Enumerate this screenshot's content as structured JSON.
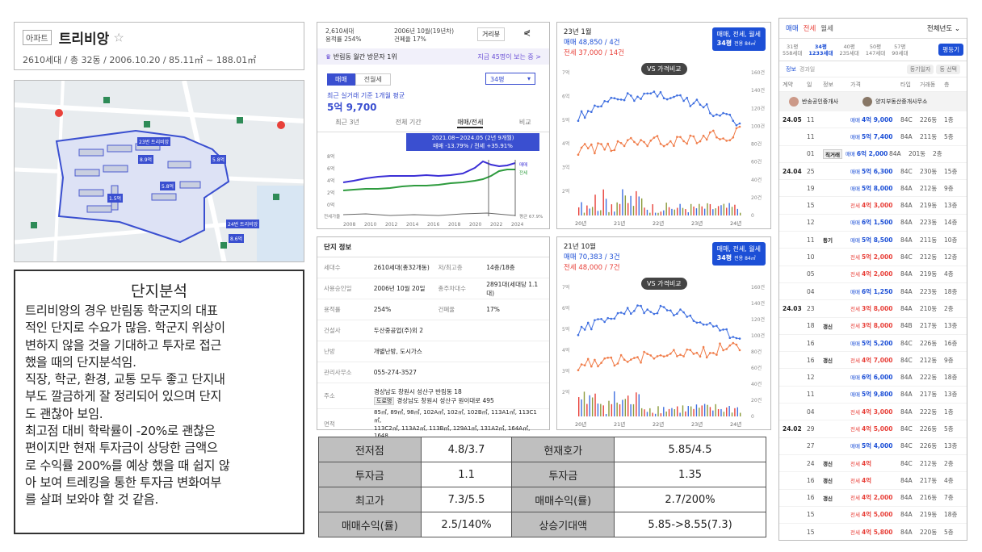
{
  "header": {
    "type_tag": "아파트",
    "name": "트리비앙",
    "subtitle": "2610세대 / 총 32동 / 2006.10.20 / 85.11㎡ ~ 188.01㎡"
  },
  "map": {
    "labels": [
      "23번 트리비앙",
      "8.9억",
      "5.8억",
      "5.8억",
      "24번 트리비앙",
      "8.6억",
      "1.5억"
    ]
  },
  "analysis": {
    "title": "단지분석",
    "lines": [
      "트리비앙의 경우 반림동 학군지의 대표",
      "적인 단지로 수요가 많음. 학군지 위상이",
      "변하지 않을 것을 기대하고 투자로 접근",
      "했을 때의 단지분석임.",
      "직장, 학군, 환경, 교통 모두 좋고 단지내",
      "부도 깔금하게 잘 정리되어 있으며 단지",
      "도 괜찮아 보임.",
      "최고점 대비 학락률이 -20%로 괜찮은",
      "편이지만 현재 투자금이 상당한 금액으",
      "로 수익률 200%를 예상 했을 때 쉽지 않",
      "아 보여 트레킹을 통한 투자금 변화여부",
      "를 살펴 보와야 할 것 같음."
    ]
  },
  "price": {
    "households": "2,610세대",
    "floor_ratio": "용적률 254%",
    "built": "2006년 10월(19년차)",
    "building_ratio": "건폐율 17%",
    "distance_btn": "거리뷰",
    "banner_left": "반림동 월간 방문자 1위",
    "banner_right": "지금 45명이 보는 중 >",
    "tabs": [
      "매매",
      "전월세"
    ],
    "size_select": "34평",
    "recent_label": "최근 실거래 기준 1개월 평균",
    "recent_price": "5억 9,700",
    "periods": [
      "최근 3년",
      "전체 기간",
      "매매/전세",
      "비교"
    ],
    "tooltip_period": "2021.08~2024.05 (2년 9개월)",
    "tooltip_change": "매매 -13.79% / 전세 +35.91%",
    "y_ticks": [
      "8억",
      "6억",
      "4억",
      "2억",
      "0억"
    ],
    "x_ticks": [
      "2008",
      "2010",
      "2012",
      "2014",
      "2016",
      "2018",
      "2020",
      "2022",
      "2024"
    ],
    "ratio_label": "전세가율",
    "ratio_value": "평균 67.9%",
    "legend": [
      "매매",
      "전세"
    ]
  },
  "info": {
    "title": "단지 정보",
    "rows": [
      [
        "세대수",
        "2610세대(총32개동)",
        "저/최고층",
        "14층/18층"
      ],
      [
        "사용승인일",
        "2006년 10월 20일",
        "총주차대수",
        "2891대(세대당 1.1대)"
      ],
      [
        "용적률",
        "254%",
        "건폐율",
        "17%"
      ],
      [
        "건설사",
        "두산중공업(주)외 2",
        "",
        ""
      ],
      [
        "난방",
        "개별난방, 도시가스",
        "",
        ""
      ],
      [
        "관리사무소",
        "055-274-3527",
        "",
        ""
      ]
    ],
    "address_label": "주소",
    "address1": "경상남도 창원시 성산구 반림동 18",
    "road_tag": "도로명",
    "address2": "경상남도 창원시 성산구 원이대로 495",
    "area_label": "면적",
    "area1": "85㎡, 89㎡, 98㎡, 102A㎡, 102㎡, 102B㎡, 113A1㎡, 113C1㎡,",
    "area2": "113C2㎡, 113A2㎡, 113B㎡, 129A1㎡, 131A2㎡, 164A㎡, 1648"
  },
  "chart1": {
    "month": "23년 1월",
    "sale": "매매 48,850 / 4건",
    "jeonse": "전세 37,000 / 14건",
    "chip1": "매매, 전세, 월세",
    "chip2": "34평",
    "chip3": "전용 84㎡",
    "vs": "VS 가격비교",
    "y_left": [
      "7억",
      "6억",
      "5억",
      "4억",
      "3억",
      "2억"
    ],
    "y_right": [
      "160건",
      "140건",
      "120건",
      "100건",
      "80건",
      "60건",
      "40건",
      "20건",
      "0"
    ],
    "x": [
      "20년",
      "21년",
      "22년",
      "23년",
      "24년"
    ]
  },
  "chart2": {
    "month": "21년 10월",
    "sale": "매매 70,383 / 3건",
    "jeonse": "전세 48,000 / 7건",
    "chip1": "매매, 전세, 월세",
    "chip2": "34평",
    "chip3": "전용 84㎡",
    "vs": "VS 가격비교",
    "y_left": [
      "7억",
      "6억",
      "5억",
      "4억",
      "3억",
      "2억"
    ],
    "y_right": [
      "160건",
      "140건",
      "120건",
      "100건",
      "80건",
      "60건",
      "40건",
      "20건",
      "0"
    ],
    "x": [
      "20년",
      "21년",
      "22년",
      "23년",
      "24년"
    ]
  },
  "summary": [
    [
      "전저점",
      "4.8/3.7",
      "현재호가",
      "5.85/4.5"
    ],
    [
      "투자금",
      "1.1",
      "투자금",
      "1.35"
    ],
    [
      "최고가",
      "7.3/5.5",
      "매매수익(률)",
      "2.7/200%"
    ],
    [
      "매매수익(률)",
      "2.5/140%",
      "상승기대액",
      "5.85->8.55(7.3)"
    ]
  ],
  "tx": {
    "tabs": [
      "매매",
      "전세",
      "월세"
    ],
    "year_select": "전체년도",
    "sizes": [
      [
        "31평",
        "558세대"
      ],
      [
        "34평",
        "1233세대"
      ],
      [
        "40평",
        "235세대"
      ],
      [
        "50평",
        "147세대"
      ],
      [
        "57평",
        "90세대"
      ]
    ],
    "register_btn": "평등기",
    "info": "정보",
    "range": "경과일",
    "btn1": "동기일자",
    "btn2": "동 선택",
    "cols": [
      "계약",
      "일",
      "정보",
      "가격",
      "타입",
      "거래동",
      "층"
    ],
    "agent1": "반송공인중개사",
    "agent2": "양지부동산중개사무소",
    "rows": [
      [
        "24.05",
        "11",
        "",
        "매매",
        "4억 9,000",
        "84C",
        "226동",
        "1층"
      ],
      [
        "",
        "11",
        "",
        "매매",
        "5억 7,400",
        "84A",
        "211동",
        "5층"
      ],
      [
        "",
        "01",
        "직거래",
        "매매",
        "6억 2,000",
        "84A",
        "201동",
        "2층"
      ],
      [
        "24.04",
        "25",
        "",
        "매매",
        "5억 6,300",
        "84C",
        "230동",
        "15층"
      ],
      [
        "",
        "19",
        "",
        "매매",
        "5억 8,000",
        "84A",
        "212동",
        "9층"
      ],
      [
        "",
        "15",
        "",
        "전세",
        "4억 3,000",
        "84A",
        "219동",
        "13층"
      ],
      [
        "",
        "12",
        "",
        "매매",
        "6억 1,500",
        "84A",
        "223동",
        "14층"
      ],
      [
        "",
        "11",
        "등기",
        "매매",
        "5억 8,500",
        "84A",
        "211동",
        "10층"
      ],
      [
        "",
        "10",
        "",
        "전세",
        "5억 2,000",
        "84C",
        "212동",
        "12층"
      ],
      [
        "",
        "05",
        "",
        "전세",
        "4억 2,000",
        "84A",
        "219동",
        "4층"
      ],
      [
        "",
        "04",
        "",
        "매매",
        "6억 1,250",
        "84A",
        "223동",
        "18층"
      ],
      [
        "24.03",
        "23",
        "",
        "전세",
        "3억 8,000",
        "84A",
        "210동",
        "2층"
      ],
      [
        "",
        "18",
        "갱신",
        "전세",
        "3억 8,000",
        "84B",
        "217동",
        "13층"
      ],
      [
        "",
        "16",
        "",
        "매매",
        "5억 5,200",
        "84C",
        "226동",
        "16층"
      ],
      [
        "",
        "16",
        "갱신",
        "전세",
        "4억 7,000",
        "84C",
        "212동",
        "9층"
      ],
      [
        "",
        "12",
        "",
        "매매",
        "6억 6,000",
        "84A",
        "222동",
        "18층"
      ],
      [
        "",
        "11",
        "",
        "매매",
        "5억 9,800",
        "84A",
        "217동",
        "13층"
      ],
      [
        "",
        "04",
        "",
        "전세",
        "4억 3,000",
        "84A",
        "222동",
        "1층"
      ],
      [
        "24.02",
        "29",
        "",
        "전세",
        "4억 5,000",
        "84C",
        "226동",
        "5층"
      ],
      [
        "",
        "27",
        "",
        "매매",
        "5억 4,000",
        "84C",
        "226동",
        "13층"
      ],
      [
        "",
        "24",
        "갱신",
        "전세",
        "4억",
        "84C",
        "212동",
        "2층"
      ],
      [
        "",
        "16",
        "갱신",
        "전세",
        "4억",
        "84A",
        "217동",
        "4층"
      ],
      [
        "",
        "16",
        "갱신",
        "전세",
        "4억 2,000",
        "84A",
        "216동",
        "7층"
      ],
      [
        "",
        "15",
        "",
        "전세",
        "4억 5,000",
        "84A",
        "219동",
        "18층"
      ],
      [
        "",
        "15",
        "",
        "전세",
        "4억 5,800",
        "84A",
        "220동",
        "5층"
      ]
    ]
  }
}
